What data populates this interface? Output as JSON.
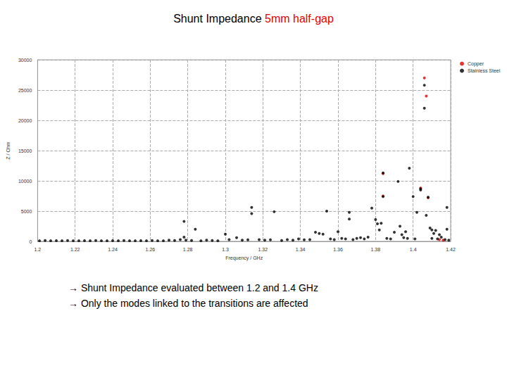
{
  "slide": {
    "title": [
      {
        "text": "Shunt Impedance ",
        "color": "#000000"
      },
      {
        "text": "5mm half-gap",
        "color": "#e00000"
      }
    ],
    "bullets": [
      "→ Shunt Impedance evaluated between 1.2 and 1.4 GHz",
      "→ Only the modes linked to the transitions are affected"
    ]
  },
  "chart_data": {
    "type": "scatter",
    "x_label": "Frequency / GHz",
    "y_label": "Z / Ohm",
    "xlim": [
      1.2,
      1.42
    ],
    "xticks": [
      1.2,
      1.22,
      1.24,
      1.26,
      1.28,
      1.3,
      1.32,
      1.34,
      1.36,
      1.38,
      1.4,
      1.42
    ],
    "ylim": [
      0,
      30000
    ],
    "yticks": [
      0,
      5000,
      10000,
      15000,
      20000,
      25000,
      30000
    ],
    "grid": true,
    "legend": "upper right",
    "series": [
      {
        "name": "Copper",
        "color": "#e00000",
        "x": [
          1.384,
          1.384,
          1.404,
          1.406,
          1.407,
          1.408,
          1.414,
          1.416
        ],
        "values": [
          11200,
          7500,
          8800,
          27000,
          24000,
          7200,
          300,
          200
        ]
      },
      {
        "name": "Stainless Steel",
        "color": "#000000",
        "x": [
          1.201,
          1.204,
          1.207,
          1.21,
          1.213,
          1.216,
          1.219,
          1.222,
          1.225,
          1.228,
          1.231,
          1.234,
          1.237,
          1.24,
          1.243,
          1.246,
          1.249,
          1.252,
          1.255,
          1.258,
          1.261,
          1.264,
          1.267,
          1.27,
          1.273,
          1.276,
          1.279,
          1.282,
          1.287,
          1.29,
          1.293,
          1.296,
          1.302,
          1.309,
          1.312,
          1.318,
          1.321,
          1.324,
          1.33,
          1.333,
          1.336,
          1.339,
          1.342,
          1.345,
          1.356,
          1.358,
          1.362,
          1.364,
          1.368,
          1.37,
          1.372,
          1.374,
          1.376,
          1.386,
          1.388,
          1.395,
          1.397,
          1.401,
          1.41,
          1.413,
          1.417,
          1.419,
          1.278,
          1.278,
          1.284,
          1.3,
          1.306,
          1.314,
          1.314,
          1.326,
          1.348,
          1.35,
          1.352,
          1.354,
          1.36,
          1.366,
          1.366,
          1.378,
          1.38,
          1.381,
          1.382,
          1.383,
          1.384,
          1.384,
          1.39,
          1.392,
          1.393,
          1.394,
          1.396,
          1.398,
          1.4,
          1.402,
          1.404,
          1.404,
          1.406,
          1.406,
          1.407,
          1.408,
          1.409,
          1.41,
          1.411,
          1.412,
          1.414,
          1.415,
          1.418,
          1.418
        ],
        "values": [
          100,
          150,
          100,
          120,
          100,
          150,
          100,
          100,
          120,
          100,
          150,
          100,
          100,
          120,
          100,
          150,
          100,
          100,
          120,
          100,
          150,
          100,
          100,
          200,
          150,
          300,
          200,
          150,
          100,
          200,
          150,
          100,
          300,
          200,
          250,
          300,
          200,
          250,
          150,
          300,
          200,
          400,
          250,
          300,
          400,
          300,
          500,
          400,
          300,
          500,
          600,
          400,
          700,
          500,
          400,
          600,
          500,
          400,
          500,
          400,
          300,
          200,
          3300,
          700,
          2000,
          1200,
          600,
          5600,
          4600,
          4900,
          1500,
          1300,
          1200,
          5000,
          1600,
          4800,
          3700,
          5500,
          3600,
          2900,
          1900,
          3000,
          11300,
          7400,
          1500,
          9900,
          2500,
          1100,
          1600,
          12100,
          7400,
          4800,
          8700,
          8500,
          25800,
          22000,
          4300,
          7300,
          2200,
          1900,
          1300,
          1800,
          1100,
          700,
          5600,
          2000
        ]
      }
    ]
  }
}
